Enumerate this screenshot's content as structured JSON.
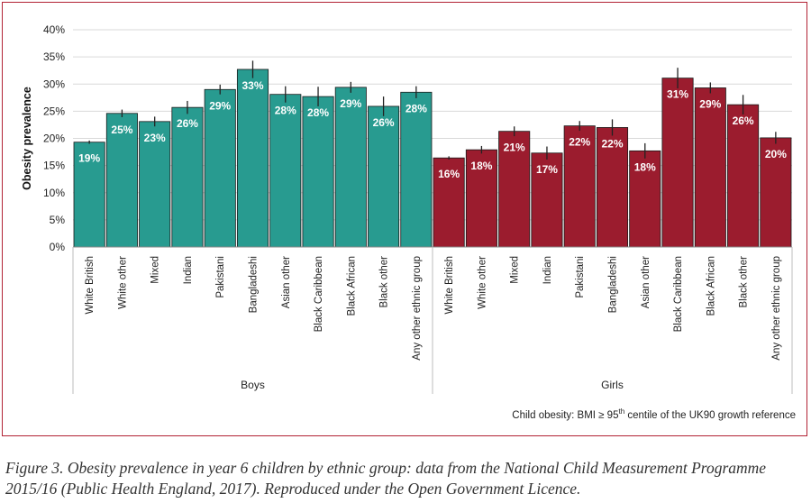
{
  "chart_data": {
    "type": "bar",
    "ylabel": "Obesity prevalence",
    "ylim": [
      0,
      40
    ],
    "yticks": [
      "0%",
      "5%",
      "10%",
      "15%",
      "20%",
      "25%",
      "30%",
      "35%",
      "40%"
    ],
    "grid": true,
    "categories": [
      "White British",
      "White other",
      "Mixed",
      "Indian",
      "Pakistani",
      "Bangladeshi",
      "Asian other",
      "Black Caribbean",
      "Black African",
      "Black other",
      "Any other ethnic group"
    ],
    "groups": [
      {
        "name": "Boys",
        "color": "#289b90",
        "values": [
          19.3,
          24.6,
          23.1,
          25.7,
          29.0,
          32.7,
          28.1,
          27.7,
          29.4,
          25.9,
          28.5
        ],
        "errors": [
          0.3,
          0.7,
          0.9,
          1.2,
          0.9,
          1.6,
          1.5,
          1.8,
          1.0,
          1.8,
          1.1
        ],
        "labels": [
          "19%",
          "25%",
          "23%",
          "26%",
          "29%",
          "33%",
          "28%",
          "28%",
          "29%",
          "26%",
          "28%"
        ]
      },
      {
        "name": "Girls",
        "color": "#9b1c2e",
        "values": [
          16.4,
          17.9,
          21.3,
          17.3,
          22.3,
          22.0,
          17.7,
          31.1,
          29.3,
          26.2,
          20.1
        ],
        "errors": [
          0.3,
          0.7,
          0.9,
          1.2,
          0.9,
          1.5,
          1.4,
          1.9,
          1.0,
          1.8,
          1.1
        ],
        "labels": [
          "16%",
          "18%",
          "21%",
          "17%",
          "22%",
          "22%",
          "18%",
          "31%",
          "29%",
          "26%",
          "20%"
        ]
      }
    ],
    "footnote": {
      "main": "Child obesity: BMI ≥ 95",
      "sup": "th",
      "tail": " centile of the UK90 growth reference"
    }
  },
  "caption": "Figure 3. Obesity prevalence in year 6 children by ethnic group: data from the National Child Measurement Programme 2015/16 (Public Health England, 2017). Reproduced under the Open Government Licence."
}
